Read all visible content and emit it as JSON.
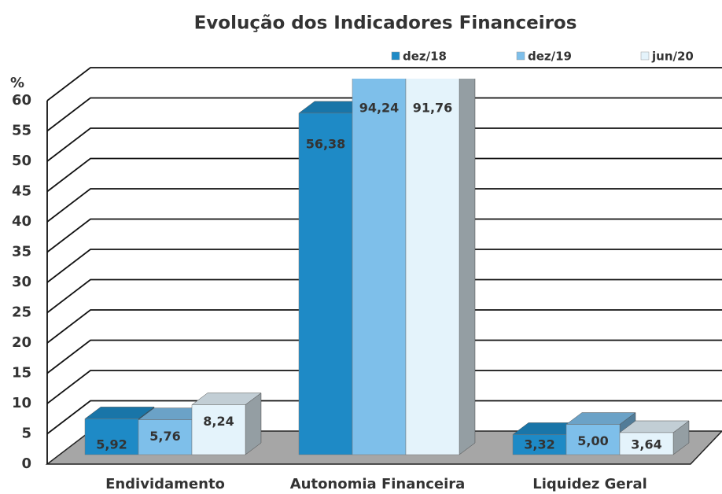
{
  "chart_data": {
    "type": "bar3d",
    "title": "Evolução dos Indicadores Financeiros",
    "y_label": "%",
    "categories": [
      "Endividamento",
      "Autonomia Financeira",
      "Liquidez Geral"
    ],
    "series": [
      {
        "name": "dez/18",
        "color": "#1e8ac6",
        "values": [
          5.92,
          56.38,
          3.32
        ],
        "value_labels": [
          "5,92",
          "56,38",
          "3,32"
        ]
      },
      {
        "name": "dez/19",
        "color": "#7ebfea",
        "values": [
          5.76,
          94.24,
          5.0
        ],
        "value_labels": [
          "5,76",
          "94,24",
          "5,00"
        ]
      },
      {
        "name": "jun/20",
        "color": "#e4f3fb",
        "values": [
          8.24,
          91.76,
          3.64
        ],
        "value_labels": [
          "8,24",
          "91,76",
          "3,64"
        ]
      }
    ],
    "ylim": [
      0,
      60
    ],
    "yticks": [
      0,
      5,
      10,
      15,
      20,
      25,
      30,
      35,
      40,
      45,
      50,
      55,
      60
    ],
    "grid": true,
    "legend": "top-right"
  }
}
